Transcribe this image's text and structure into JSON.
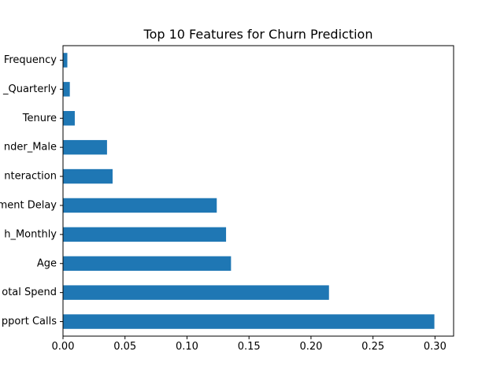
{
  "chart_data": {
    "type": "bar",
    "orientation": "horizontal",
    "title": "Top 10 Features for Churn Prediction",
    "xlabel": "",
    "ylabel": "",
    "categories": [
      "Frequency",
      "_Quarterly",
      "Tenure",
      "nder_Male",
      "nteraction",
      "ment Delay",
      "h_Monthly",
      "Age",
      "otal Spend",
      "pport Calls"
    ],
    "values": [
      0.0035,
      0.0055,
      0.0095,
      0.0355,
      0.04,
      0.124,
      0.1315,
      0.1355,
      0.2145,
      0.2995
    ],
    "xlim": [
      0,
      0.315
    ],
    "xticks": [
      0.0,
      0.05,
      0.1,
      0.15,
      0.2,
      0.25,
      0.3
    ],
    "xtick_labels": [
      "0.00",
      "0.05",
      "0.10",
      "0.15",
      "0.20",
      "0.25",
      "0.30"
    ],
    "grid": false,
    "legend": "none",
    "bar_color": "#1f77b4"
  }
}
